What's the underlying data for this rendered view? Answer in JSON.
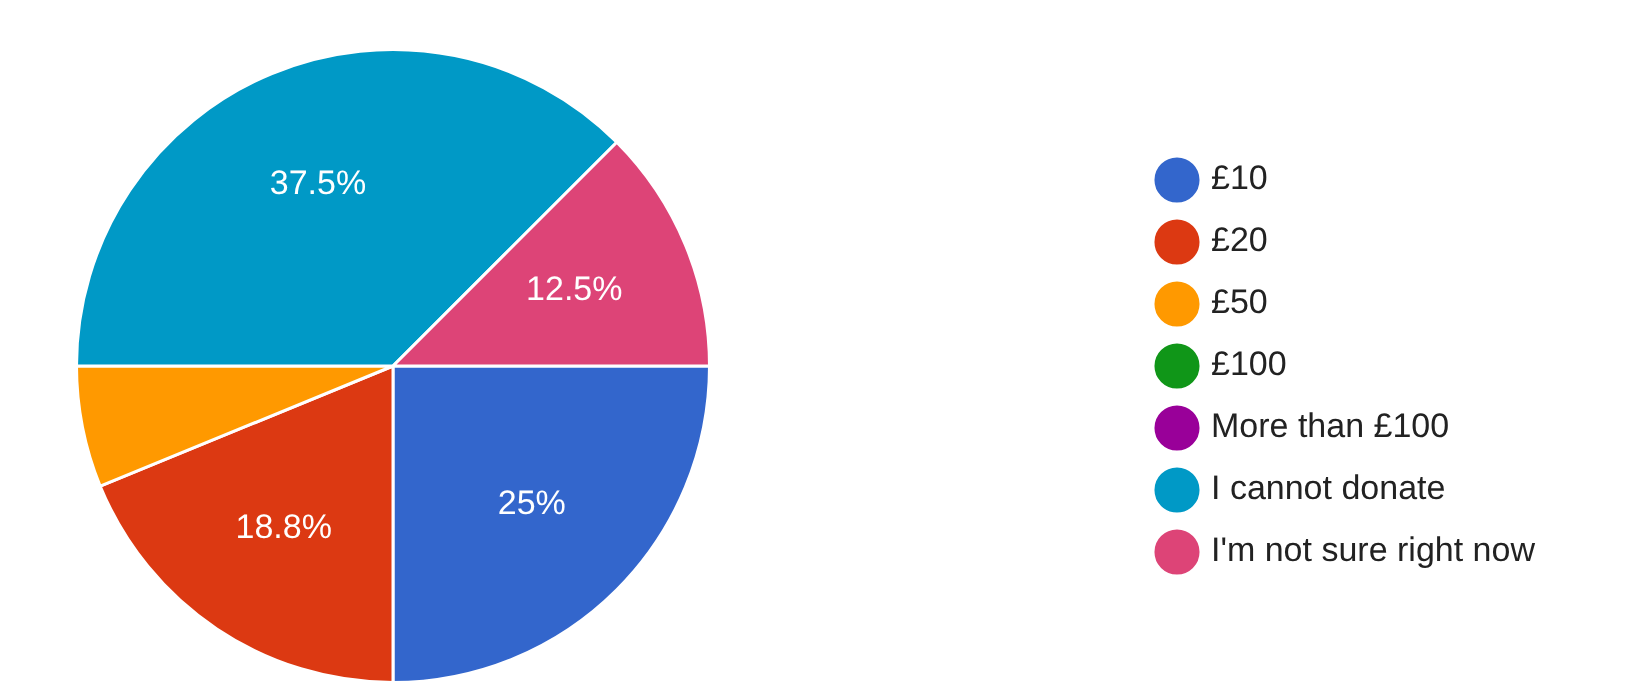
{
  "chart_data": {
    "type": "pie",
    "categories": [
      "£10",
      "£20",
      "£50",
      "£100",
      "More than £100",
      "I cannot donate",
      "I'm not sure right now"
    ],
    "values": [
      25,
      18.8,
      6.2,
      0,
      0,
      37.5,
      12.5
    ],
    "colors": [
      "#3366cc",
      "#dc3912",
      "#ff9900",
      "#109618",
      "#990099",
      "#0099c6",
      "#dd4477"
    ],
    "value_labels": [
      "25%",
      "18.8%",
      null,
      null,
      null,
      "37.5%",
      "12.5%"
    ],
    "legend": "right"
  }
}
